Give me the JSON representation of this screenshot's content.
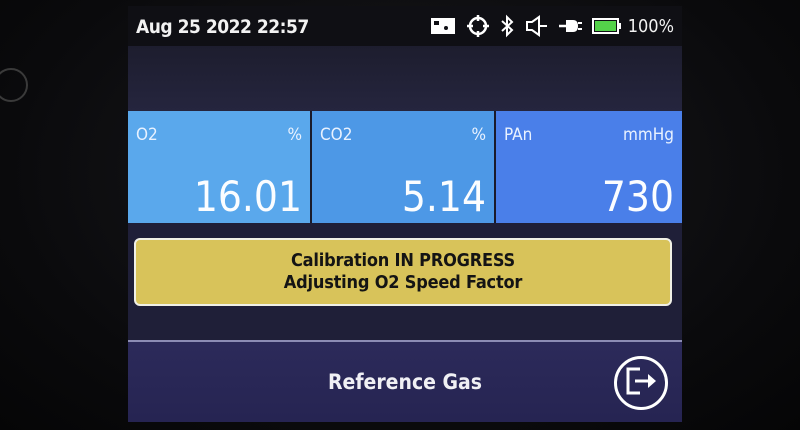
{
  "status_bar": {
    "datetime": "Aug 25 2022 22:57",
    "battery_percent": "100%",
    "icons": [
      "display-icon",
      "crosshair-icon",
      "bluetooth-icon",
      "speaker-icon",
      "plug-icon",
      "battery-icon"
    ]
  },
  "measurements": [
    {
      "name": "O2",
      "unit": "%",
      "value": "16.01"
    },
    {
      "name": "CO2",
      "unit": "%",
      "value": "5.14"
    },
    {
      "name": "PAn",
      "unit": "mmHg",
      "value": "730"
    }
  ],
  "banner": {
    "line1": "Calibration IN PROGRESS",
    "line2": "Adjusting O2 Speed Factor",
    "color": "#d8c35a"
  },
  "footer": {
    "title": "Reference Gas",
    "exit_icon": "exit-icon"
  },
  "colors": {
    "tile_o2": "#5aa8ec",
    "tile_co2": "#4d98e6",
    "tile_pan": "#4a7fe9",
    "footer": "#2c2a5a"
  }
}
